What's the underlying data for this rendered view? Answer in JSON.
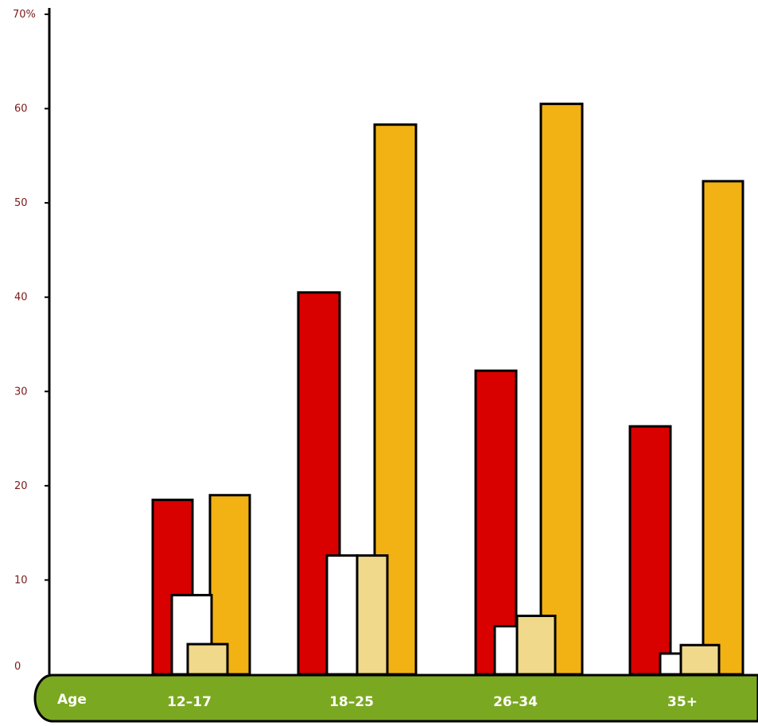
{
  "chart_data": {
    "type": "bar",
    "categories": [
      "12–17",
      "18–25",
      "26–34",
      "35+"
    ],
    "series": [
      {
        "color": "#d90000",
        "values": [
          18.5,
          40.5,
          32.2,
          26.3
        ]
      },
      {
        "color": "#ffffff",
        "values": [
          8.4,
          12.6,
          5.1,
          2.2
        ]
      },
      {
        "color": "#f0d98a",
        "values": [
          3.2,
          12.6,
          6.2,
          3.1
        ]
      },
      {
        "color": "#f2b213",
        "values": [
          19.0,
          58.3,
          60.5,
          52.3
        ]
      }
    ],
    "ylim": [
      0,
      70
    ],
    "yticks": [
      "0",
      "10",
      "20",
      "30",
      "40",
      "50",
      "60",
      "70%"
    ],
    "xaxis_band_label": "Age",
    "xaxis_band_color": "#7ba821",
    "grid": false,
    "legend": "none"
  }
}
